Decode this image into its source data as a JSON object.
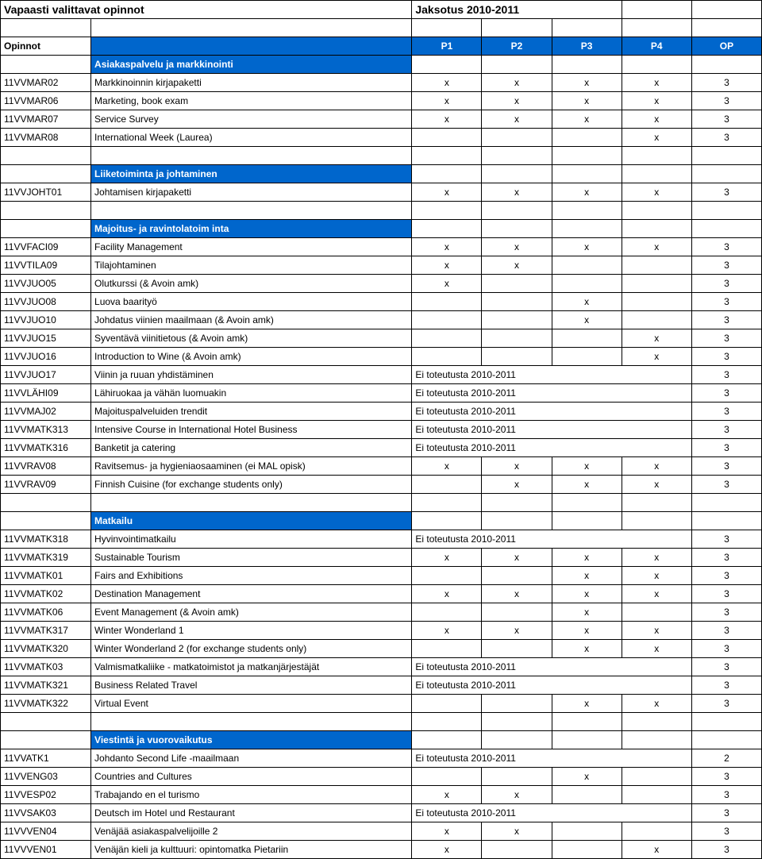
{
  "title_left": "Vapaasti valittavat opinnot",
  "title_right": "Jaksotus 2010-2011",
  "header": {
    "opinnot": "Opinnot",
    "p1": "P1",
    "p2": "P2",
    "p3": "P3",
    "p4": "P4",
    "op": "OP"
  },
  "sections": [
    {
      "title": "Asiakaspalvelu ja markkinointi",
      "rows": [
        {
          "code": "11VVMAR02",
          "name": "Markkinoinnin kirjapaketti",
          "p1": "x",
          "p2": "x",
          "p3": "x",
          "p4": "x",
          "op": "3"
        },
        {
          "code": "11VVMAR06",
          "name": "Marketing, book exam",
          "p1": "x",
          "p2": "x",
          "p3": "x",
          "p4": "x",
          "op": "3"
        },
        {
          "code": "11VVMAR07",
          "name": "Service Survey",
          "p1": "x",
          "p2": "x",
          "p3": "x",
          "p4": "x",
          "op": "3"
        },
        {
          "code": "11VVMAR08",
          "name": "International Week (Laurea)",
          "p1": "",
          "p2": "",
          "p3": "",
          "p4": "x",
          "op": "3"
        }
      ]
    },
    {
      "title": "Liiketoiminta ja johtaminen",
      "rows": [
        {
          "code": "11VVJOHT01",
          "name": "Johtamisen kirjapaketti",
          "p1": "x",
          "p2": "x",
          "p3": "x",
          "p4": "x",
          "op": "3"
        }
      ]
    },
    {
      "title": "Majoitus- ja ravintolatoim inta",
      "rows": [
        {
          "code": "11VVFACI09",
          "name": "Facility Management",
          "p1": "x",
          "p2": "x",
          "p3": "x",
          "p4": "x",
          "op": "3"
        },
        {
          "code": "11VVTILA09",
          "name": "Tilajohtaminen",
          "p1": "x",
          "p2": "x",
          "p3": "",
          "p4": "",
          "op": "3"
        },
        {
          "code": "11VVJUO05",
          "name": "Olutkurssi (& Avoin amk)",
          "p1": "x",
          "p2": "",
          "p3": "",
          "p4": "",
          "op": "3"
        },
        {
          "code": "11VVJUO08",
          "name": "Luova baarityö",
          "p1": "",
          "p2": "",
          "p3": "x",
          "p4": "",
          "op": "3"
        },
        {
          "code": "11VVJUO10",
          "name": "Johdatus viinien maailmaan (& Avoin amk)",
          "p1": "",
          "p2": "",
          "p3": "x",
          "p4": "",
          "op": "3"
        },
        {
          "code": "11VVJUO15",
          "name": "Syventävä viinitietous (& Avoin amk)",
          "p1": "",
          "p2": "",
          "p3": "",
          "p4": "x",
          "op": "3"
        },
        {
          "code": "11VVJUO16",
          "name": "Introduction to Wine (& Avoin amk)",
          "p1": "",
          "p2": "",
          "p3": "",
          "p4": "x",
          "op": "3"
        },
        {
          "code": "11VVJUO17",
          "name": "Viinin ja ruuan yhdistäminen",
          "note": "Ei toteutusta 2010-2011",
          "op": "3"
        },
        {
          "code": "11VVLÄHI09",
          "name": "Lähiruokaa ja vähän luomuakin",
          "note": "Ei toteutusta 2010-2011",
          "op": "3"
        },
        {
          "code": "11VVMAJ02",
          "name": "Majoituspalveluiden trendit",
          "note": "Ei toteutusta 2010-2011",
          "op": "3"
        },
        {
          "code": "11VVMATK313",
          "name": "Intensive Course in International Hotel Business",
          "note": "Ei toteutusta 2010-2011",
          "op": "3"
        },
        {
          "code": "11VVMATK316",
          "name": "Banketit ja catering",
          "note": "Ei toteutusta 2010-2011",
          "op": "3"
        },
        {
          "code": "11VVRAV08",
          "name": "Ravitsemus- ja hygieniaosaaminen (ei MAL opisk)",
          "p1": "x",
          "p2": "x",
          "p3": "x",
          "p4": "x",
          "op": "3"
        },
        {
          "code": "11VVRAV09",
          "name": "Finnish Cuisine (for exchange students only)",
          "p1": "",
          "p2": "x",
          "p3": "x",
          "p4": "x",
          "op": "3"
        }
      ]
    },
    {
      "title": "Matkailu",
      "rows": [
        {
          "code": "11VVMATK318",
          "name": "Hyvinvointimatkailu",
          "note": "Ei toteutusta 2010-2011",
          "op": "3"
        },
        {
          "code": "11VVMATK319",
          "name": "Sustainable Tourism",
          "p1": "x",
          "p2": "x",
          "p3": "x",
          "p4": "x",
          "op": "3"
        },
        {
          "code": "11VVMATK01",
          "name": "Fairs and Exhibitions",
          "p1": "",
          "p2": "",
          "p3": "x",
          "p4": "x",
          "op": "3"
        },
        {
          "code": "11VVMATK02",
          "name": "Destination Management",
          "p1": "x",
          "p2": "x",
          "p3": "x",
          "p4": "x",
          "op": "3"
        },
        {
          "code": "11VVMATK06",
          "name": "Event Management (& Avoin amk)",
          "p1": "",
          "p2": "",
          "p3": "x",
          "p4": "",
          "op": "3"
        },
        {
          "code": "11VVMATK317",
          "name": "Winter Wonderland 1",
          "p1": "x",
          "p2": "x",
          "p3": "x",
          "p4": "x",
          "op": "3"
        },
        {
          "code": "11VVMATK320",
          "name": "Winter Wonderland 2 (for exchange students only)",
          "p1": "",
          "p2": "",
          "p3": "x",
          "p4": "x",
          "op": "3"
        },
        {
          "code": "11VVMATK03",
          "name": "Valmismatkaliike - matkatoimistot ja matkanjärjestäjät",
          "note": "Ei toteutusta 2010-2011",
          "op": "3"
        },
        {
          "code": "11VVMATK321",
          "name": "Business Related Travel",
          "note": "Ei toteutusta 2010-2011",
          "op": "3"
        },
        {
          "code": "11VVMATK322",
          "name": "Virtual Event",
          "p1": "",
          "p2": "",
          "p3": "x",
          "p4": "x",
          "op": "3"
        }
      ]
    },
    {
      "title": "Viestintä ja vuorovaikutus",
      "rows": [
        {
          "code": "11VVATK1",
          "name": "Johdanto Second Life -maailmaan",
          "note": "Ei toteutusta 2010-2011",
          "op": "2"
        },
        {
          "code": "11VVENG03",
          "name": "Countries and Cultures",
          "p1": "",
          "p2": "",
          "p3": "x",
          "p4": "",
          "op": "3"
        },
        {
          "code": "11VVESP02",
          "name": "Trabajando en el turismo",
          "p1": "x",
          "p2": "x",
          "p3": "",
          "p4": "",
          "op": "3"
        },
        {
          "code": "11VVSAK03",
          "name": "Deutsch im Hotel und Restaurant",
          "note": "Ei toteutusta 2010-2011",
          "op": "3"
        },
        {
          "code": "11VVVEN04",
          "name": "Venäjää asiakaspalvelijoille 2",
          "p1": "x",
          "p2": "x",
          "p3": "",
          "p4": "",
          "op": "3"
        },
        {
          "code": "11VVVEN01",
          "name": "Venäjän kieli ja kulttuuri: opintomatka Pietariin",
          "p1": "x",
          "p2": "",
          "p3": "",
          "p4": "x",
          "op": "3"
        }
      ]
    }
  ],
  "colors": {
    "header_bg": "#0066cc",
    "header_fg": "#ffffff",
    "border": "#000000",
    "section_fg": "#0066cc"
  }
}
